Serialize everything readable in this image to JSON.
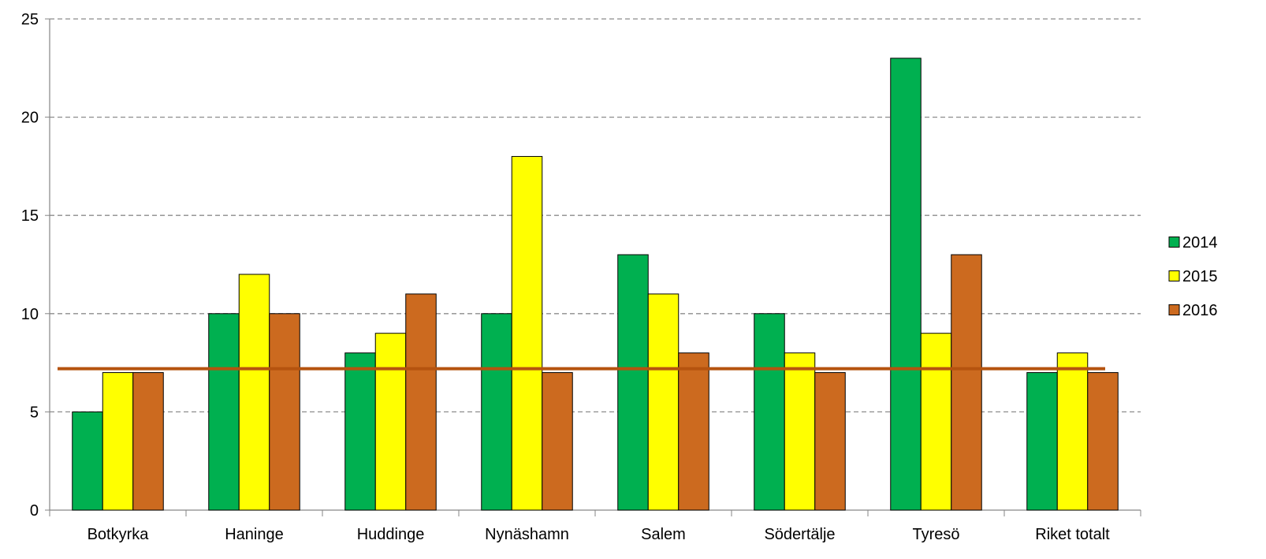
{
  "chart_data": {
    "type": "bar",
    "categories": [
      "Botkyrka",
      "Haninge",
      "Huddinge",
      "Nynäshamn",
      "Salem",
      "Södertälje",
      "Tyresö",
      "Riket totalt"
    ],
    "series": [
      {
        "name": "2014",
        "color": "#00b050",
        "values": [
          5,
          10,
          8,
          10,
          13,
          10,
          23,
          7
        ]
      },
      {
        "name": "2015",
        "color": "#ffff00",
        "values": [
          7,
          12,
          9,
          18,
          11,
          8,
          9,
          8
        ]
      },
      {
        "name": "2016",
        "color": "#cc6a1f",
        "values": [
          7,
          10,
          11,
          7,
          8,
          7,
          13,
          7
        ]
      }
    ],
    "reference_line": {
      "value": 7.2,
      "color": "#b5530f"
    },
    "ylim": [
      0,
      25
    ],
    "yticks": [
      0,
      5,
      10,
      15,
      20,
      25
    ],
    "grid": "horizontal dashed",
    "legend": "right",
    "title": "",
    "xlabel": "",
    "ylabel": ""
  }
}
